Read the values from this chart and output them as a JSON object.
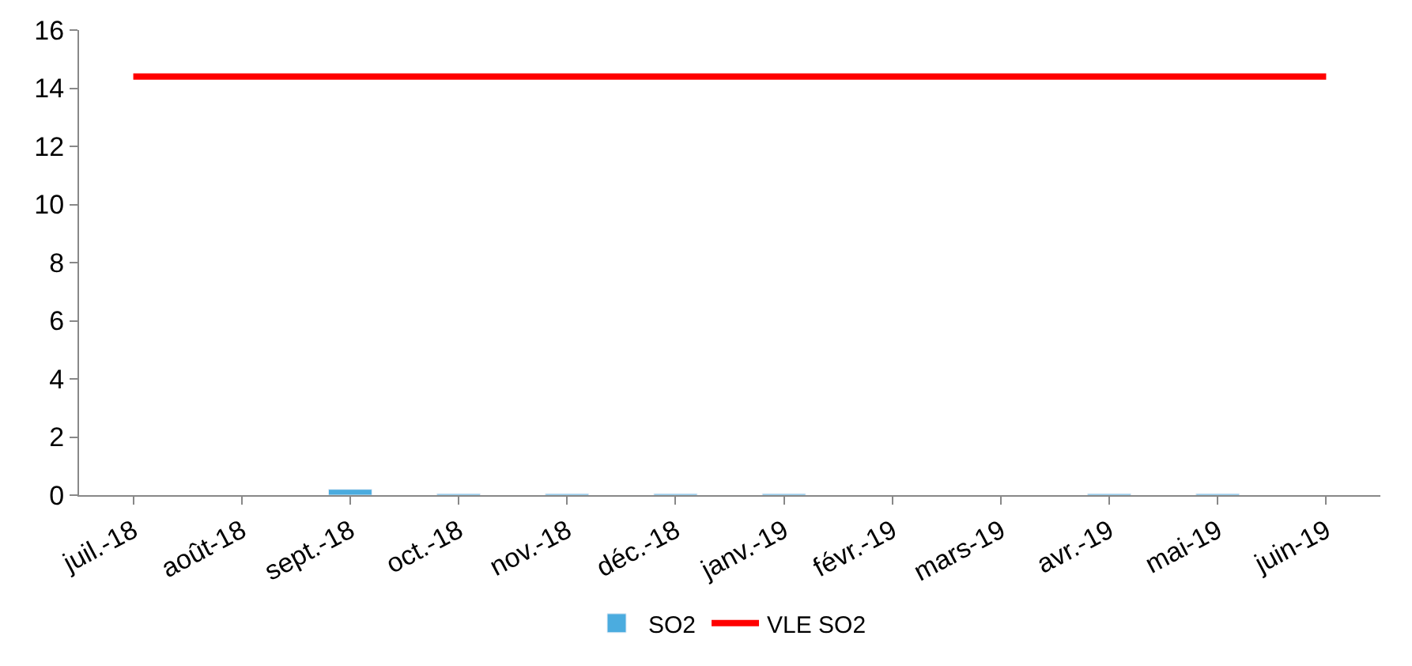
{
  "chart_data": {
    "type": "bar",
    "categories": [
      "juil.-18",
      "août-18",
      "sept.-18",
      "oct.-18",
      "nov.-18",
      "déc.-18",
      "janv.-19",
      "févr.-19",
      "mars-19",
      "avr.-19",
      "mai-19",
      "juin-19"
    ],
    "series": [
      {
        "name": "SO2",
        "color": "#4bacdf",
        "values": [
          null,
          null,
          0.2,
          0.05,
          0.05,
          0.05,
          0.05,
          null,
          null,
          0.05,
          0.05,
          null
        ]
      },
      {
        "name": "VLE SO2",
        "type": "line",
        "color": "#ff0000",
        "values": [
          14.4,
          14.4,
          14.4,
          14.4,
          14.4,
          14.4,
          14.4,
          14.4,
          14.4,
          14.4,
          14.4,
          14.4
        ]
      }
    ],
    "ylim": [
      0,
      16
    ],
    "yticks": [
      0,
      2,
      4,
      6,
      8,
      10,
      12,
      14,
      16
    ],
    "legend": "bottom",
    "marker": "none",
    "line_style": "solid"
  }
}
